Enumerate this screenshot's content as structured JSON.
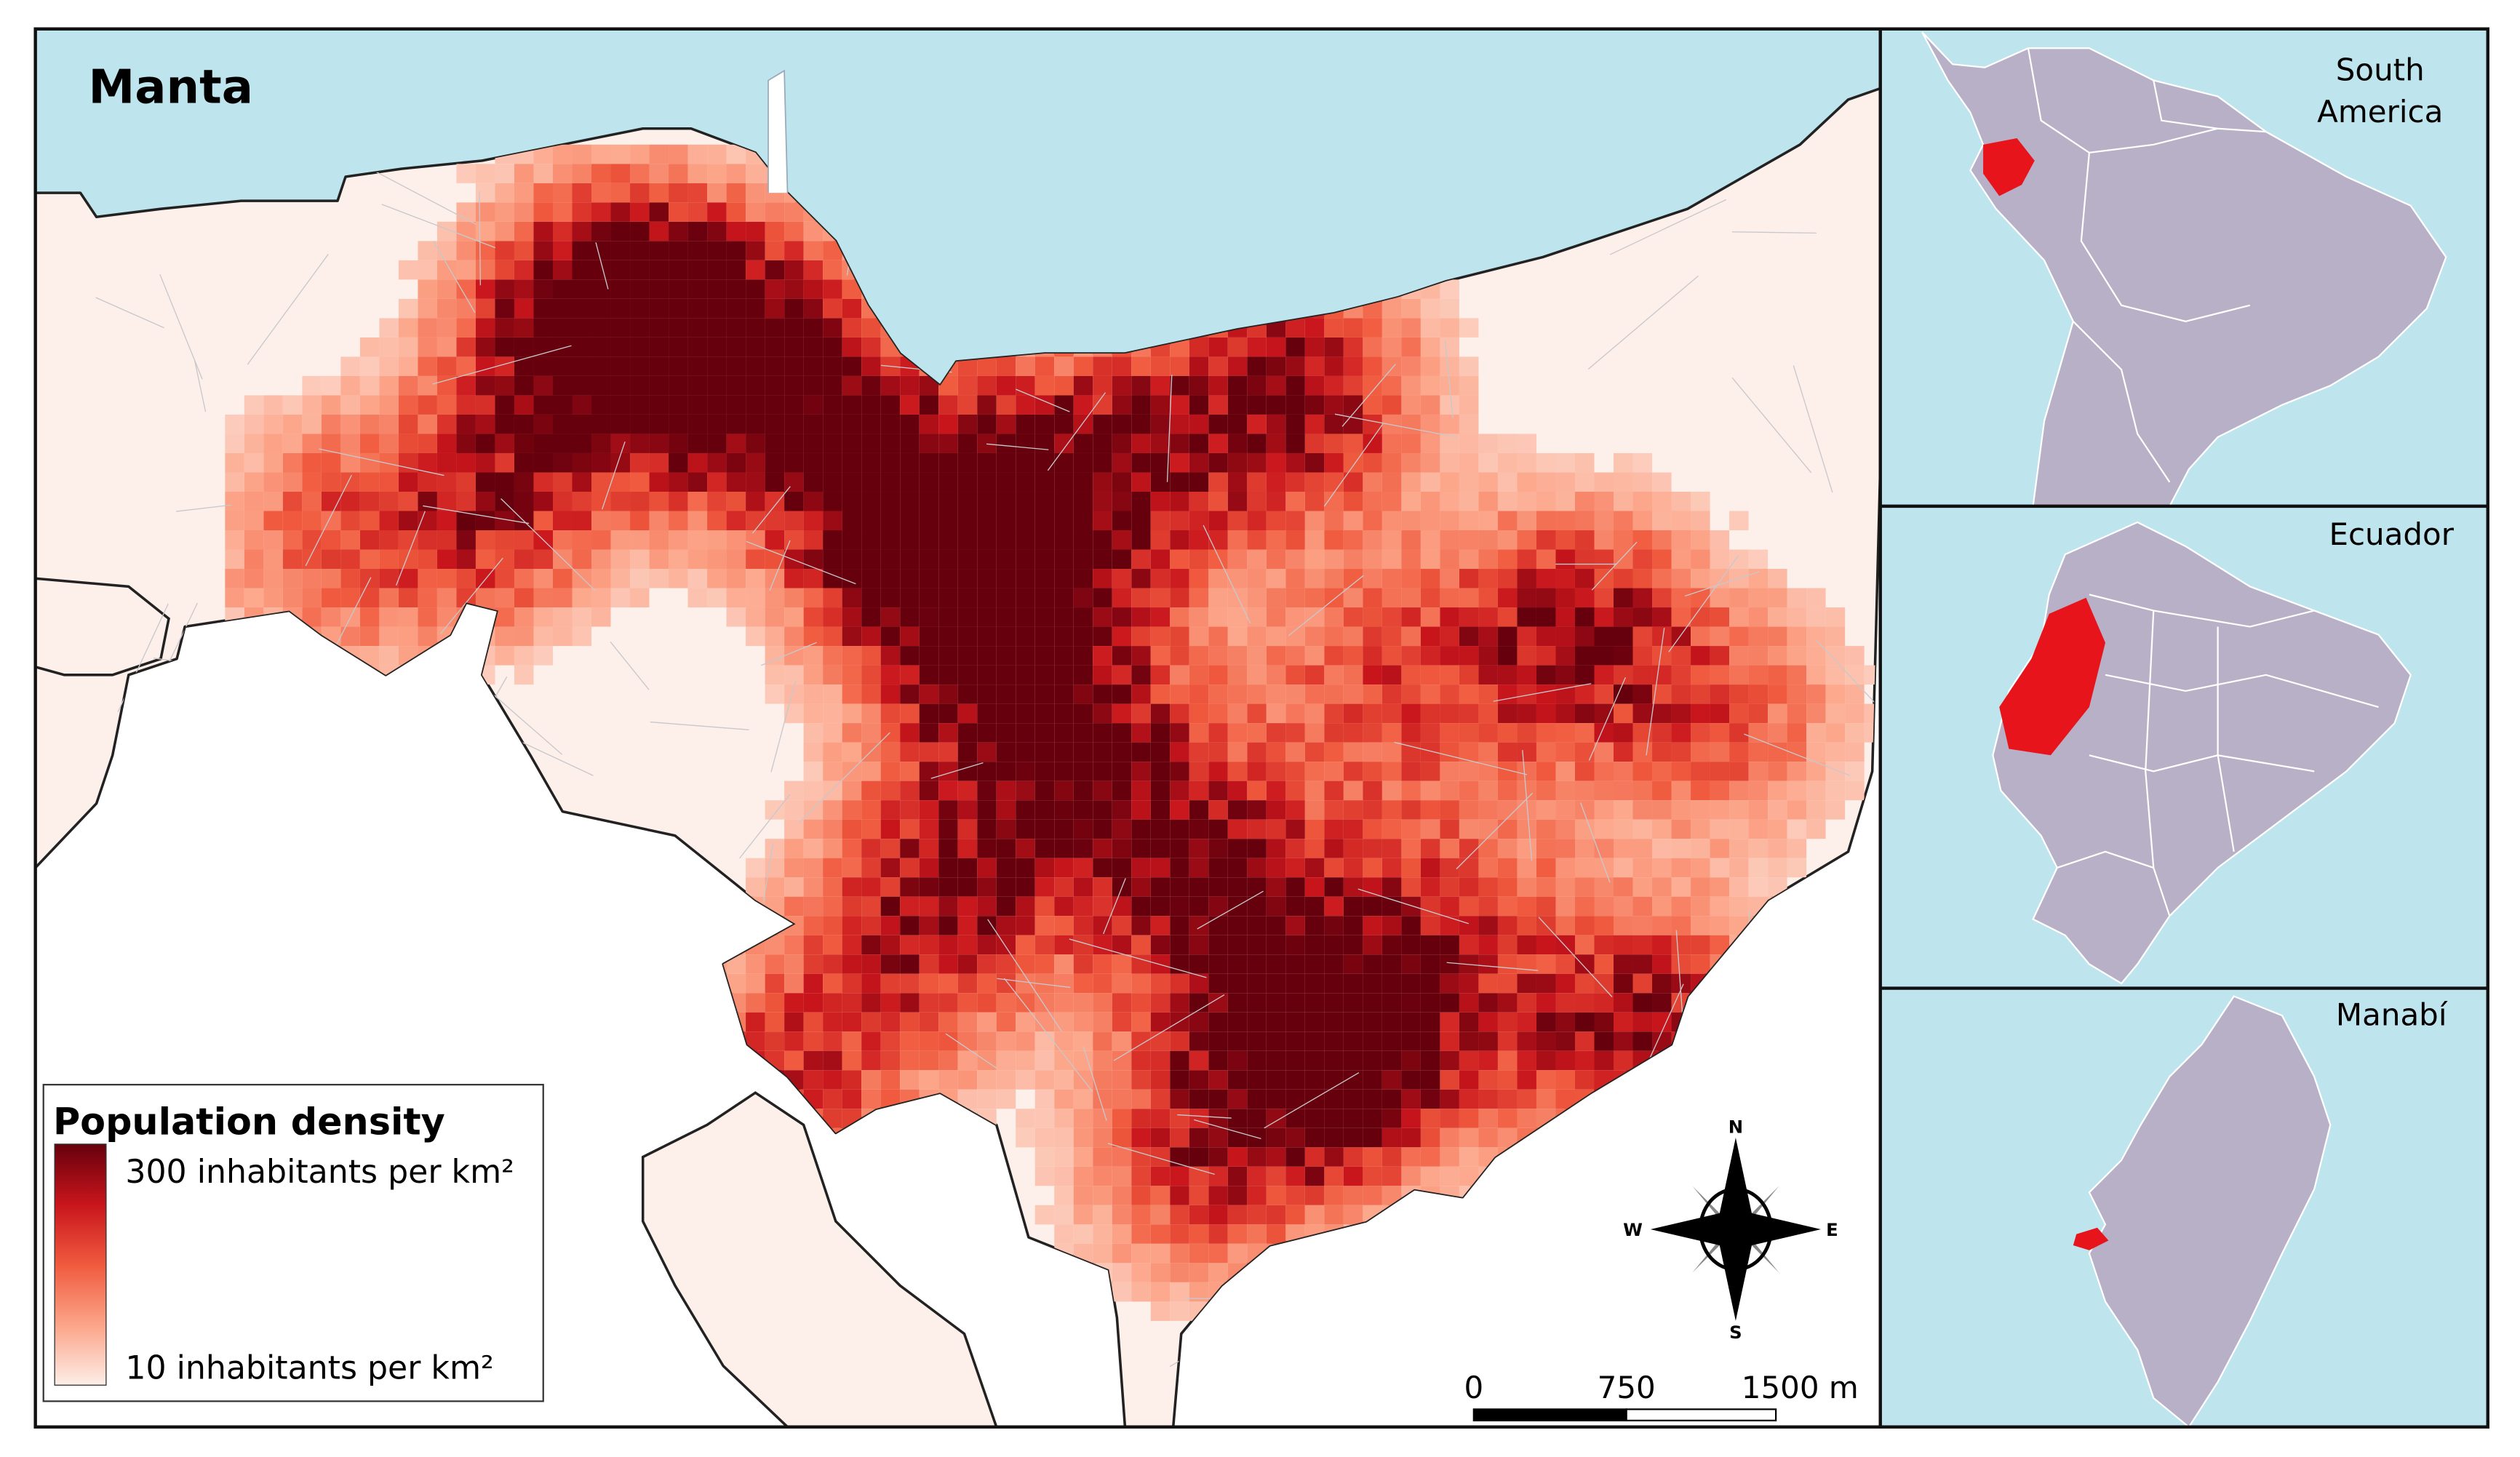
{
  "map": {
    "title": "Manta",
    "colors": {
      "sea": "#bee5ee",
      "land": "#fdefe9",
      "density_low": "#fde6dc",
      "density_mid": "#f26a4f",
      "density_high": "#c8151c",
      "density_max": "#6b0010",
      "inset_land": "#b8b0c6",
      "highlight": "#e8141b"
    }
  },
  "legend": {
    "title": "Population density",
    "max_label": "300 inhabitants per km²",
    "min_label": "10 inhabitants per km²",
    "max_value": 300,
    "min_value": 10
  },
  "scale_bar": {
    "labels": [
      "0",
      "750",
      "1500 m"
    ]
  },
  "compass": {
    "n": "N",
    "e": "E",
    "s": "S",
    "w": "W"
  },
  "insets": [
    {
      "label_lines": [
        "South",
        "America"
      ],
      "highlight": "Ecuador"
    },
    {
      "label_lines": [
        "Ecuador"
      ],
      "highlight": "Manabí"
    },
    {
      "label_lines": [
        "Manabí"
      ],
      "highlight": "Manta"
    }
  ]
}
